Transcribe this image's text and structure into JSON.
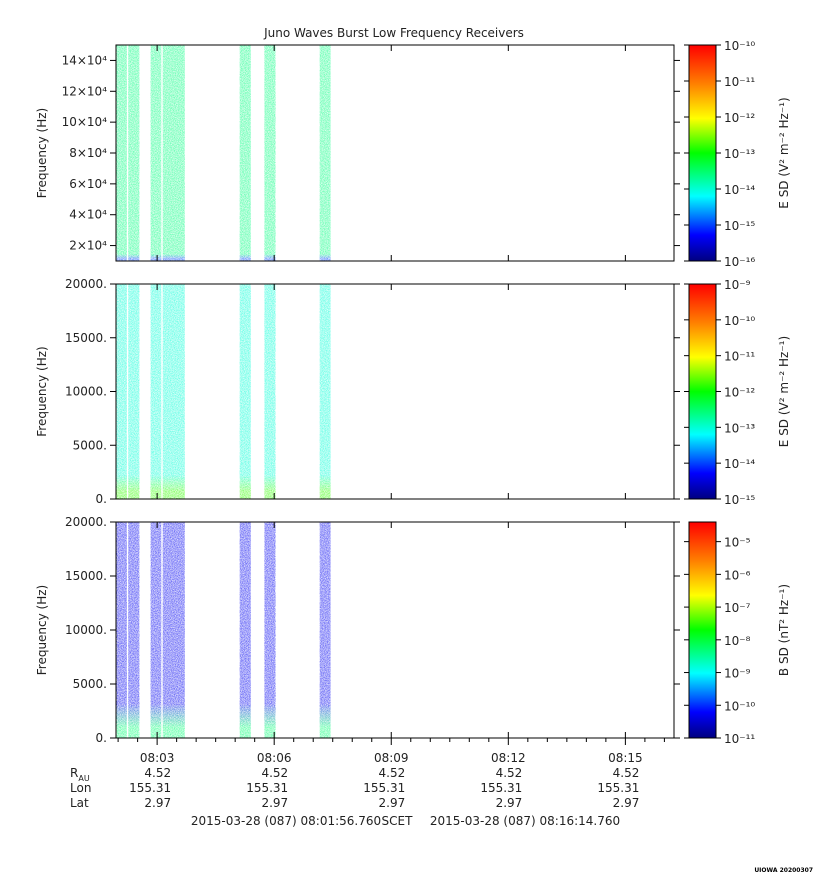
{
  "title": "Juno Waves Burst Low Frequency Receivers",
  "footer": {
    "start_label": "2015-03-28 (087) 08:01:56.760",
    "scet_label": "SCET",
    "end_label": "2015-03-28 (087) 08:16:14.760",
    "stamp": "UIOWA 20200307"
  },
  "chart_data": [
    {
      "type": "heatmap",
      "ylabel": "Frequency (Hz)",
      "yticks": [
        "2×10⁴",
        "4×10⁴",
        "6×10⁴",
        "8×10⁴",
        "10×10⁴",
        "12×10⁴",
        "14×10⁴"
      ],
      "ytick_values": [
        20000,
        40000,
        60000,
        80000,
        100000,
        120000,
        140000
      ],
      "ylim": [
        10000,
        150000
      ],
      "colorbar_label": "E SD (V² m⁻² Hz⁻¹)",
      "colorbar_ticks": [
        "10⁻¹⁰",
        "10⁻¹¹",
        "10⁻¹²",
        "10⁻¹³",
        "10⁻¹⁴",
        "10⁻¹⁵",
        "10⁻¹⁶"
      ],
      "colorbar_range_log10": [
        -16,
        -10
      ],
      "fill_level_log10": -13.6,
      "base_level_log10": -15.0,
      "base_fraction": 0.02
    },
    {
      "type": "heatmap",
      "ylabel": "Frequency (Hz)",
      "yticks": [
        "20000.",
        "15000.",
        "10000.",
        "5000.",
        "0."
      ],
      "ytick_values": [
        20000,
        15000,
        10000,
        5000,
        0
      ],
      "ylim": [
        0,
        20000
      ],
      "colorbar_label": "E SD (V² m⁻² Hz⁻¹)",
      "colorbar_ticks": [
        "10⁻⁹",
        "10⁻¹⁰",
        "10⁻¹¹",
        "10⁻¹²",
        "10⁻¹³",
        "10⁻¹⁴",
        "10⁻¹⁵"
      ],
      "colorbar_range_log10": [
        -15,
        -9
      ],
      "fill_level_log10": -13.0,
      "base_level_log10": -11.8,
      "base_fraction": 0.07
    },
    {
      "type": "heatmap",
      "ylabel": "Frequency (Hz)",
      "yticks": [
        "20000.",
        "15000.",
        "10000.",
        "5000.",
        "0."
      ],
      "ytick_values": [
        20000,
        15000,
        10000,
        5000,
        0
      ],
      "ylim": [
        0,
        20000
      ],
      "colorbar_label": "B SD (nT² Hz⁻¹)",
      "colorbar_ticks": [
        "10⁻⁵",
        "10⁻⁶",
        "10⁻⁷",
        "10⁻⁸",
        "10⁻⁹",
        "10⁻¹⁰",
        "10⁻¹¹"
      ],
      "colorbar_tick_values_log10": [
        -5,
        -6,
        -7,
        -8,
        -9,
        -10,
        -11
      ],
      "colorbar_range_log10": [
        -11,
        -4.4
      ],
      "fill_level_log10": -10.3,
      "base_level_log10": -8.3,
      "base_fraction": 0.1
    }
  ],
  "time_axis": {
    "xlim_seconds_after_08_00": [
      116.76,
      974.76
    ],
    "major_ticks": [
      "08:03",
      "08:06",
      "08:09",
      "08:12",
      "08:15"
    ],
    "major_tick_seconds": [
      180,
      360,
      540,
      720,
      900
    ],
    "data_intervals_seconds": [
      [
        116.76,
        133.5
      ],
      [
        135.5,
        152.7
      ],
      [
        170.0,
        186.5
      ],
      [
        188.5,
        222.5
      ],
      [
        307.0,
        324.0
      ],
      [
        345.0,
        362.0
      ],
      [
        430.0,
        446.8
      ]
    ]
  },
  "ephemeris": {
    "rows": [
      {
        "label": "R_AU",
        "label_main": "R",
        "label_sub": "AU",
        "values": [
          "4.52",
          "4.52",
          "4.52",
          "4.52",
          "4.52"
        ]
      },
      {
        "label": "Lon",
        "label_main": "Lon",
        "label_sub": "",
        "values": [
          "155.31",
          "155.31",
          "155.31",
          "155.31",
          "155.31"
        ]
      },
      {
        "label": "Lat",
        "label_main": "Lat",
        "label_sub": "",
        "values": [
          "2.97",
          "2.97",
          "2.97",
          "2.97",
          "2.97"
        ]
      }
    ]
  }
}
